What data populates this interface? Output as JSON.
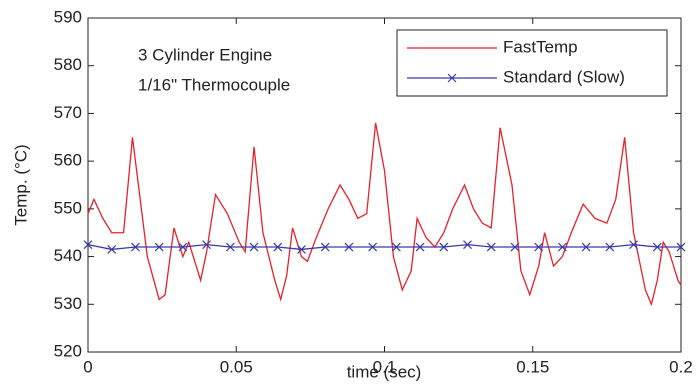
{
  "chart_data": {
    "type": "line",
    "xlabel": "time (sec)",
    "ylabel": "Temp. (°C)",
    "annotations": [
      "3 Cylinder Engine",
      "1/16\" Thermocouple"
    ],
    "xlim": [
      0,
      0.2
    ],
    "xticks": [
      0,
      0.05,
      0.1,
      0.15,
      0.2
    ],
    "ylim": [
      520,
      590
    ],
    "yticks": [
      520,
      530,
      540,
      550,
      560,
      570,
      580,
      590
    ],
    "grid": false,
    "legend": "upper right",
    "series": [
      {
        "name": "FastTemp",
        "color": "#e8202a",
        "marker": "none",
        "x": [
          0,
          0.002,
          0.005,
          0.008,
          0.012,
          0.015,
          0.018,
          0.02,
          0.024,
          0.026,
          0.029,
          0.032,
          0.034,
          0.038,
          0.04,
          0.043,
          0.047,
          0.051,
          0.053,
          0.056,
          0.059,
          0.063,
          0.065,
          0.067,
          0.069,
          0.072,
          0.074,
          0.077,
          0.081,
          0.085,
          0.088,
          0.091,
          0.094,
          0.097,
          0.1,
          0.103,
          0.106,
          0.109,
          0.111,
          0.114,
          0.117,
          0.12,
          0.123,
          0.127,
          0.13,
          0.133,
          0.136,
          0.139,
          0.143,
          0.146,
          0.149,
          0.152,
          0.154,
          0.157,
          0.16,
          0.163,
          0.167,
          0.171,
          0.175,
          0.178,
          0.181,
          0.184,
          0.188,
          0.19,
          0.192,
          0.194,
          0.196,
          0.199,
          0.2
        ],
        "values": [
          549,
          552,
          548,
          545,
          545,
          565,
          550,
          540,
          531,
          532,
          546,
          540,
          543,
          535,
          541,
          553,
          549,
          543,
          541,
          563,
          545,
          535,
          531,
          536,
          546,
          540,
          539,
          544,
          550,
          555,
          552,
          548,
          549,
          568,
          558,
          540,
          533,
          537,
          548,
          544,
          542,
          545,
          550,
          555,
          550,
          547,
          546,
          567,
          555,
          537,
          532,
          538,
          545,
          538,
          540,
          545,
          551,
          548,
          547,
          552,
          565,
          545,
          533,
          530,
          535,
          543,
          541,
          535,
          534
        ]
      },
      {
        "name": "Standard (Slow)",
        "color": "#3a3aa8",
        "marker": "x",
        "x": [
          0,
          0.008,
          0.016,
          0.024,
          0.032,
          0.04,
          0.048,
          0.056,
          0.064,
          0.072,
          0.08,
          0.088,
          0.096,
          0.104,
          0.112,
          0.12,
          0.128,
          0.136,
          0.144,
          0.152,
          0.16,
          0.168,
          0.176,
          0.184,
          0.192,
          0.2
        ],
        "values": [
          542.5,
          541.5,
          542,
          542,
          542,
          542.5,
          542,
          542,
          542,
          541.5,
          542,
          542,
          542,
          542,
          542,
          542,
          542.5,
          542,
          542,
          542,
          542,
          542,
          542,
          542.5,
          542,
          542
        ]
      }
    ]
  }
}
